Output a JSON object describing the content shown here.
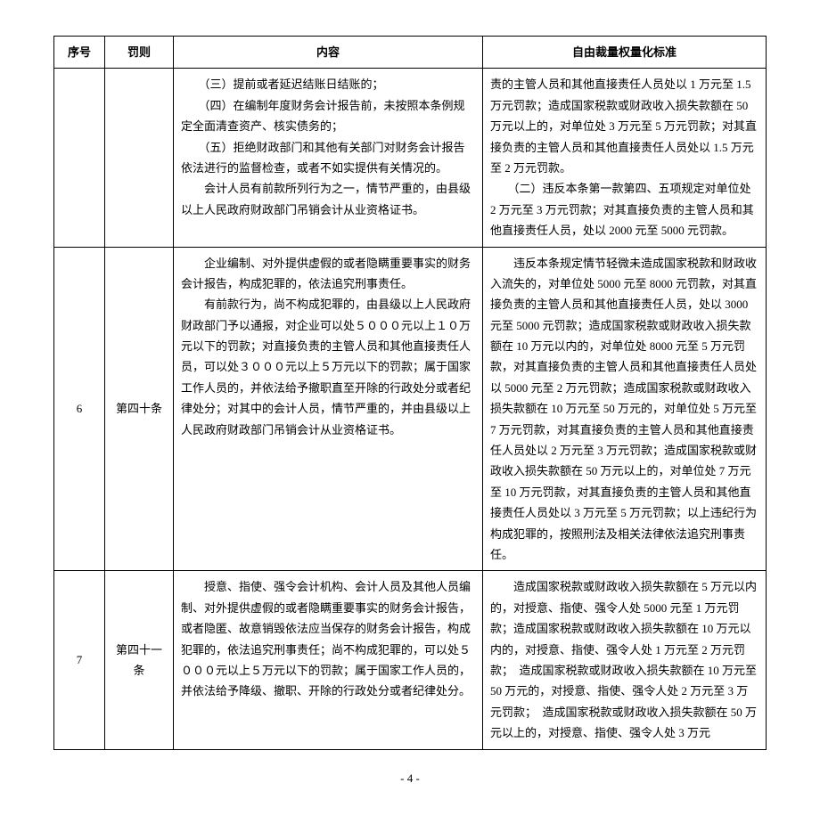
{
  "headers": {
    "no": "序号",
    "penalty": "罚则",
    "content": "内容",
    "standard": "自由裁量权量化标准"
  },
  "rows": [
    {
      "no": "",
      "penalty": "",
      "content_lines": [
        "　　（三）提前或者延迟结账日结账的；",
        "　　（四）在编制年度财务会计报告前，未按照本条例规定全面清查资产、核实债务的；",
        "　　（五）拒绝财政部门和其他有关部门对财务会计报告依法进行的监督检查，或者不如实提供有关情况的。",
        "　　会计人员有前款所列行为之一，情节严重的，由县级以上人民政府财政部门吊销会计从业资格证书。"
      ],
      "standard_lines": [
        "责的主管人员和其他直接责任人员处以 1 万元至 1.5 万元罚款；造成国家税款或财政收入损失款额在 50 万元以上的，对单位处 3 万元至 5 万元罚款；对其直接负责的主管人员和其他直接责任人员处以 1.5 万元至 2 万元罚款。",
        "　　（二）违反本条第一款第四、五项规定对单位处 2 万元至 3 万元罚款；对其直接负责的主管人员和其他直接责任人员，处以 2000 元至 5000 元罚款。"
      ]
    },
    {
      "no": "6",
      "penalty": "第四十条",
      "content_lines": [
        "　　企业编制、对外提供虚假的或者隐瞒重要事实的财务会计报告，构成犯罪的，依法追究刑事责任。",
        "　　有前款行为，尚不构成犯罪的，由县级以上人民政府财政部门予以通报，对企业可以处５０００元以上１０万元以下的罚款；对直接负责的主管人员和其他直接责任人员，可以处３０００元以上５万元以下的罚款；属于国家工作人员的，并依法给予撤职直至开除的行政处分或者纪律处分；对其中的会计人员，情节严重的，并由县级以上人民政府财政部门吊销会计从业资格证书。"
      ],
      "standard_lines": [
        "　　违反本条规定情节轻微未造成国家税款和财政收入流失的，对单位处 5000 元至 8000 元罚款，对其直接负责的主管人员和其他直接责任人员，处以 3000 元至 5000 元罚款；造成国家税款或财政收入损失款额在 10 万元以内的，对单位处 8000 元至 5 万元罚款，对其直接负责的主管人员和其他直接责任人员处以 5000 元至 2 万元罚款；造成国家税款或财政收入损失款额在 10 万元至 50 万元的，对单位处 5 万元至 7 万元罚款，对其直接负责的主管人员和其他直接责任人员处以 2 万元至 3 万元罚款；造成国家税款或财政收入损失款额在 50 万元以上的，对单位处 7 万元至 10 万元罚款，对其直接负责的主管人员和其他直接责任人员处以 3 万元至 5 万元罚款；以上违纪行为构成犯罪的，按照刑法及相关法律依法追究刑事责任。"
      ]
    },
    {
      "no": "7",
      "penalty": "第四十一条",
      "content_lines": [
        "　　授意、指使、强令会计机构、会计人员及其他人员编制、对外提供虚假的或者隐瞒重要事实的财务会计报告，或者隐匿、故意销毁依法应当保存的财务会计报告，构成犯罪的，依法追究刑事责任；尚不构成犯罪的，可以处５０００元以上５万元以下的罚款；属于国家工作人员的，并依法给予降级、撤职、开除的行政处分或者纪律处分。"
      ],
      "standard_lines": [
        "　　造成国家税款或财政收入损失款额在 5 万元以内的，对授意、指使、强令人处 5000 元至 1 万元罚款；造成国家税款或财政收入损失款额在 10 万元以内的，对授意、指使、强令人处 1 万元至 2 万元罚款；　造成国家税款或财政收入损失款额在 10 万元至 50 万元的，对授意、指使、强令人处 2 万元至 3 万元罚款；　造成国家税款或财政收入损失款额在 50 万元以上的，对授意、指使、强令人处 3 万元"
      ]
    }
  ],
  "page_number": "- 4 -"
}
